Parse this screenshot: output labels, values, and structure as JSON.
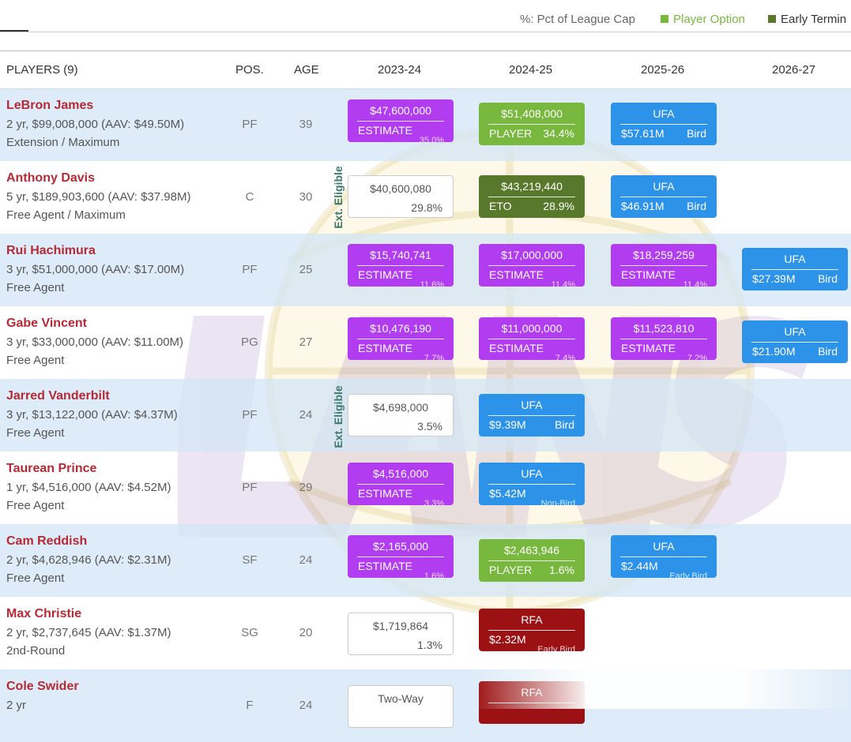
{
  "legend": {
    "pct": "%: Pct of League Cap",
    "player_option": "Player Option",
    "early_term": "Early Termin",
    "colors": {
      "player_option": "#79b83e",
      "early_term": "#58782b"
    }
  },
  "columns": {
    "players": "PLAYERS (9)",
    "pos": "POS.",
    "age": "AGE",
    "seasons": [
      "2023-24",
      "2024-25",
      "2025-26",
      "2026-27"
    ]
  },
  "ext_eligible": "Ext. Eligible",
  "colors": {
    "estimate": "#b13cf0",
    "player_option": "#79b83e",
    "eto": "#58782b",
    "ufa": "#2c93e8",
    "rfa": "#9c1214",
    "name": "#b52a35"
  },
  "players": [
    {
      "name": "LeBron James",
      "contract": "2 yr, $99,008,000 (AAV: $49.50M)",
      "note": "Extension / Maximum",
      "pos": "PF",
      "age": "39",
      "cells": [
        {
          "top": "$47,600,000",
          "bl": "ESTIMATE",
          "br": "",
          "sub": "35.0%"
        },
        {
          "top": "$51,408,000",
          "bl": "PLAYER",
          "br": "34.4%",
          "sub": ""
        },
        {
          "top": "UFA",
          "bl": "$57.61M",
          "br": "Bird",
          "sub": ""
        }
      ]
    },
    {
      "name": "Anthony Davis",
      "contract": "5 yr, $189,903,600 (AAV: $37.98M)",
      "note": "Free Agent / Maximum",
      "pos": "C",
      "age": "30",
      "cells": [
        {
          "top": "$40,600,080",
          "bl": "",
          "br": "29.8%",
          "sub": ""
        },
        {
          "top": "$43,219,440",
          "bl": "ETO",
          "br": "28.9%",
          "sub": ""
        },
        {
          "top": "UFA",
          "bl": "$46.91M",
          "br": "Bird",
          "sub": ""
        }
      ]
    },
    {
      "name": "Rui Hachimura",
      "contract": "3 yr, $51,000,000 (AAV: $17.00M)",
      "note": "Free Agent",
      "pos": "PF",
      "age": "25",
      "cells": [
        {
          "top": "$15,740,741",
          "bl": "ESTIMATE",
          "br": "",
          "sub": "11.6%"
        },
        {
          "top": "$17,000,000",
          "bl": "ESTIMATE",
          "br": "",
          "sub": "11.4%"
        },
        {
          "top": "$18,259,259",
          "bl": "ESTIMATE",
          "br": "",
          "sub": "11.4%"
        },
        {
          "top": "UFA",
          "bl": "$27.39M",
          "br": "Bird",
          "sub": ""
        }
      ]
    },
    {
      "name": "Gabe Vincent",
      "contract": "3 yr, $33,000,000 (AAV: $11.00M)",
      "note": "Free Agent",
      "pos": "PG",
      "age": "27",
      "cells": [
        {
          "top": "$10,476,190",
          "bl": "ESTIMATE",
          "br": "",
          "sub": "7.7%"
        },
        {
          "top": "$11,000,000",
          "bl": "ESTIMATE",
          "br": "",
          "sub": "7.4%"
        },
        {
          "top": "$11,523,810",
          "bl": "ESTIMATE",
          "br": "",
          "sub": "7.2%"
        },
        {
          "top": "UFA",
          "bl": "$21.90M",
          "br": "Bird",
          "sub": ""
        }
      ]
    },
    {
      "name": "Jarred Vanderbilt",
      "contract": "3 yr, $13,122,000 (AAV: $4.37M)",
      "note": "Free Agent",
      "pos": "PF",
      "age": "24",
      "cells": [
        {
          "top": "$4,698,000",
          "bl": "",
          "br": "3.5%",
          "sub": ""
        },
        {
          "top": "UFA",
          "bl": "$9.39M",
          "br": "Bird",
          "sub": ""
        }
      ]
    },
    {
      "name": "Taurean Prince",
      "contract": "1 yr, $4,516,000 (AAV: $4.52M)",
      "note": "Free Agent",
      "pos": "PF",
      "age": "29",
      "cells": [
        {
          "top": "$4,516,000",
          "bl": "ESTIMATE",
          "br": "",
          "sub": "3.3%"
        },
        {
          "top": "UFA",
          "bl": "$5.42M",
          "br": "",
          "sub": "Non-Bird"
        }
      ]
    },
    {
      "name": "Cam Reddish",
      "contract": "2 yr, $4,628,946 (AAV: $2.31M)",
      "note": "Free Agent",
      "pos": "SF",
      "age": "24",
      "cells": [
        {
          "top": "$2,165,000",
          "bl": "ESTIMATE",
          "br": "",
          "sub": "1.6%"
        },
        {
          "top": "$2,463,946",
          "bl": "PLAYER",
          "br": "1.6%",
          "sub": ""
        },
        {
          "top": "UFA",
          "bl": "$2.44M",
          "br": "",
          "sub": "Early Bird"
        }
      ]
    },
    {
      "name": "Max Christie",
      "contract": "2 yr, $2,737,645 (AAV: $1.37M)",
      "note": "2nd-Round",
      "pos": "SG",
      "age": "20",
      "cells": [
        {
          "top": "$1,719,864",
          "bl": "",
          "br": "1.3%",
          "sub": ""
        },
        {
          "top": "RFA",
          "bl": "$2.32M",
          "br": "",
          "sub": "Early Bird"
        }
      ]
    },
    {
      "name": "Cole Swider",
      "contract": "2 yr",
      "note": "",
      "pos": "F",
      "age": "24",
      "cells": [
        {
          "top": "Two-Way",
          "bl": "",
          "br": "",
          "sub": ""
        },
        {
          "top": "RFA",
          "bl": "",
          "br": "",
          "sub": ""
        }
      ]
    }
  ]
}
